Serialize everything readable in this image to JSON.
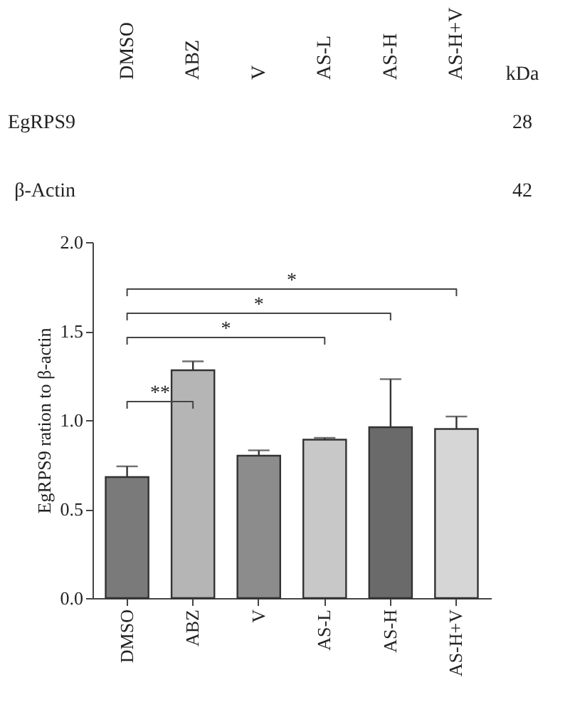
{
  "chart_data": {
    "type": "bar",
    "ylabel": "EgRPS9 ration to β-actin",
    "categories": [
      "DMSO",
      "ABZ",
      "V",
      "AS-L",
      "AS-H",
      "AS-H+V"
    ],
    "values": [
      0.68,
      1.28,
      0.8,
      0.89,
      0.96,
      0.95
    ],
    "errors": [
      0.06,
      0.05,
      0.03,
      0.01,
      0.27,
      0.07
    ],
    "colors": [
      "#7a7a7a",
      "#b5b5b5",
      "#8c8c8c",
      "#c8c8c8",
      "#6a6a6a",
      "#d6d6d6"
    ],
    "ylim": [
      0,
      2
    ],
    "yticks": [
      {
        "value": 0,
        "label": "0.0"
      },
      {
        "value": 0.5,
        "label": "0.5"
      },
      {
        "value": 1,
        "label": "1.0"
      },
      {
        "value": 1.5,
        "label": "1.5"
      },
      {
        "value": 2,
        "label": "2.0"
      }
    ],
    "grid": false,
    "annotations": [
      "DMSO",
      "ABZ",
      "V",
      "AS-L",
      "AS-H",
      "AS-H+V",
      "kDa",
      "EgRPS9",
      "β-Actin",
      "28",
      "42",
      "**",
      "*",
      "*",
      "*"
    ]
  }
}
